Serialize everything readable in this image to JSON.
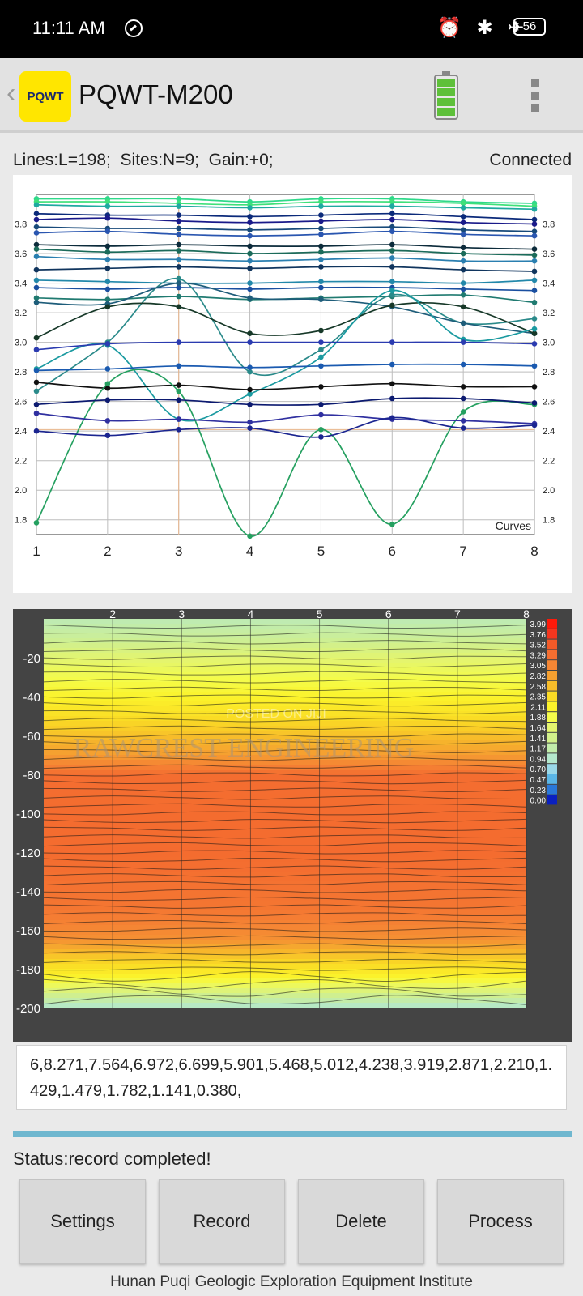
{
  "status_bar": {
    "time": "11:11 AM",
    "icons": "⏰ ✱ ✈",
    "battery": "56",
    "icon_names": [
      "do-not-disturb-icon",
      "alarm-icon",
      "bluetooth-icon",
      "airplane-icon",
      "battery-icon"
    ]
  },
  "app_bar": {
    "back_glyph": "‹",
    "logo_text": "PQWT",
    "title": "PQWT-M200"
  },
  "info": {
    "lines": "Lines:L=198;",
    "sites": "Sites:N=9;",
    "gain": "Gain:+0;",
    "connection": "Connected"
  },
  "chart_data": [
    {
      "type": "line",
      "legend_text": "Curves",
      "x": [
        1,
        2,
        3,
        4,
        5,
        6,
        7,
        8
      ],
      "ylim": [
        1.7,
        4.0
      ],
      "y_ticks": [
        "3.8",
        "3.6",
        "3.4",
        "3.2",
        "3.0",
        "2.8",
        "2.6",
        "2.4",
        "2.2",
        "2.0",
        "1.8"
      ],
      "x_ticks": [
        "1",
        "2",
        "3",
        "4",
        "5",
        "6",
        "7",
        "8"
      ],
      "grid": true,
      "series": [
        {
          "color": "#2fd98a",
          "values": [
            3.97,
            3.97,
            3.97,
            3.95,
            3.97,
            3.97,
            3.95,
            3.94
          ]
        },
        {
          "color": "#3fe07a",
          "values": [
            3.95,
            3.95,
            3.94,
            3.93,
            3.95,
            3.95,
            3.94,
            3.92
          ]
        },
        {
          "color": "#1fa9a0",
          "values": [
            3.93,
            3.92,
            3.92,
            3.91,
            3.92,
            3.92,
            3.91,
            3.9
          ]
        },
        {
          "color": "#0b2a7a",
          "values": [
            3.87,
            3.86,
            3.86,
            3.85,
            3.86,
            3.87,
            3.85,
            3.83
          ]
        },
        {
          "color": "#1a1a8a",
          "values": [
            3.83,
            3.84,
            3.82,
            3.81,
            3.82,
            3.83,
            3.81,
            3.8
          ]
        },
        {
          "color": "#184a7a",
          "values": [
            3.78,
            3.77,
            3.77,
            3.76,
            3.77,
            3.78,
            3.76,
            3.75
          ]
        },
        {
          "color": "#2a56b0",
          "values": [
            3.74,
            3.75,
            3.73,
            3.72,
            3.73,
            3.75,
            3.73,
            3.72
          ]
        },
        {
          "color": "#0c2b3b",
          "values": [
            3.66,
            3.65,
            3.66,
            3.65,
            3.65,
            3.66,
            3.64,
            3.63
          ]
        },
        {
          "color": "#1b6b5a",
          "values": [
            3.63,
            3.61,
            3.62,
            3.6,
            3.61,
            3.62,
            3.6,
            3.59
          ]
        },
        {
          "color": "#2a7fb0",
          "values": [
            3.58,
            3.56,
            3.56,
            3.55,
            3.56,
            3.57,
            3.55,
            3.55
          ]
        },
        {
          "color": "#10355e",
          "values": [
            3.49,
            3.5,
            3.51,
            3.5,
            3.51,
            3.51,
            3.49,
            3.48
          ]
        },
        {
          "color": "#2288aa",
          "values": [
            3.42,
            3.41,
            3.4,
            3.4,
            3.41,
            3.41,
            3.4,
            3.42
          ]
        },
        {
          "color": "#1a4fa0",
          "values": [
            3.37,
            3.36,
            3.37,
            3.36,
            3.37,
            3.37,
            3.36,
            3.35
          ]
        },
        {
          "color": "#1f7a70",
          "values": [
            3.3,
            3.29,
            3.31,
            3.29,
            3.3,
            3.31,
            3.32,
            3.27
          ]
        },
        {
          "color": "#2a8a8a",
          "values": [
            2.67,
            3.0,
            3.43,
            2.8,
            2.95,
            3.32,
            3.13,
            3.16
          ]
        },
        {
          "color": "#1e5d7a",
          "values": [
            3.27,
            3.26,
            3.4,
            3.3,
            3.29,
            3.24,
            3.13,
            3.06
          ]
        },
        {
          "color": "#163828",
          "values": [
            3.03,
            3.24,
            3.24,
            3.06,
            3.08,
            3.25,
            3.24,
            3.06
          ]
        },
        {
          "color": "#1a9aa0",
          "values": [
            2.82,
            2.98,
            2.48,
            2.65,
            2.9,
            3.35,
            3.02,
            3.09
          ]
        },
        {
          "color": "#2b3bb0",
          "values": [
            2.95,
            2.99,
            3.0,
            3.0,
            3.0,
            3.0,
            3.0,
            2.99
          ]
        },
        {
          "color": "#1a5ab0",
          "values": [
            2.81,
            2.82,
            2.84,
            2.83,
            2.84,
            2.85,
            2.85,
            2.84
          ]
        },
        {
          "color": "#111111",
          "values": [
            2.73,
            2.69,
            2.71,
            2.68,
            2.7,
            2.72,
            2.7,
            2.7
          ]
        },
        {
          "color": "#25a060",
          "values": [
            1.78,
            2.72,
            2.67,
            1.69,
            2.41,
            1.77,
            2.53,
            2.58
          ]
        },
        {
          "color": "#0c1a70",
          "values": [
            2.58,
            2.61,
            2.61,
            2.58,
            2.58,
            2.62,
            2.62,
            2.59
          ]
        },
        {
          "color": "#3030a0",
          "values": [
            2.52,
            2.47,
            2.48,
            2.46,
            2.51,
            2.48,
            2.47,
            2.45
          ]
        },
        {
          "color": "#1b2590",
          "values": [
            2.4,
            2.37,
            2.41,
            2.42,
            2.36,
            2.49,
            2.42,
            2.44
          ]
        }
      ]
    },
    {
      "type": "heatmap",
      "x_ticks": [
        "2",
        "3",
        "4",
        "5",
        "6",
        "7",
        "8"
      ],
      "y_ticks": [
        "-20",
        "-40",
        "-60",
        "-80",
        "-100",
        "-120",
        "-140",
        "-160",
        "-180",
        "-200"
      ],
      "ylim": [
        -200,
        0
      ],
      "xlim": [
        1,
        8
      ],
      "colorbar": [
        {
          "value": "3.99",
          "color": "#ff1a0a"
        },
        {
          "value": "3.76",
          "color": "#f4361e"
        },
        {
          "value": "3.52",
          "color": "#f25a28"
        },
        {
          "value": "3.29",
          "color": "#f46e30"
        },
        {
          "value": "3.05",
          "color": "#f58634"
        },
        {
          "value": "2.82",
          "color": "#f5a030"
        },
        {
          "value": "2.58",
          "color": "#f7bd2a"
        },
        {
          "value": "2.35",
          "color": "#fada25"
        },
        {
          "value": "2.11",
          "color": "#fbf22a"
        },
        {
          "value": "1.88",
          "color": "#f4fb4a"
        },
        {
          "value": "1.64",
          "color": "#e4f56e"
        },
        {
          "value": "1.41",
          "color": "#d2f08a"
        },
        {
          "value": "1.17",
          "color": "#c2ecaa"
        },
        {
          "value": "0.94",
          "color": "#b4e8cc"
        },
        {
          "value": "0.70",
          "color": "#9ad8e8"
        },
        {
          "value": "0.47",
          "color": "#5ab6e6"
        },
        {
          "value": "0.23",
          "color": "#2a78d8"
        },
        {
          "value": "0.00",
          "color": "#0a20c0"
        }
      ],
      "depth_profile": [
        {
          "depth": 0,
          "value": 1.1
        },
        {
          "depth": -10,
          "value": 1.3
        },
        {
          "depth": -20,
          "value": 1.62
        },
        {
          "depth": -30,
          "value": 1.85
        },
        {
          "depth": -40,
          "value": 2.1
        },
        {
          "depth": -50,
          "value": 2.3
        },
        {
          "depth": -60,
          "value": 2.55
        },
        {
          "depth": -70,
          "value": 2.85
        },
        {
          "depth": -80,
          "value": 3.3
        },
        {
          "depth": -120,
          "value": 3.32
        },
        {
          "depth": -150,
          "value": 3.2
        },
        {
          "depth": -165,
          "value": 2.95
        },
        {
          "depth": -175,
          "value": 2.45
        },
        {
          "depth": -185,
          "value": 2.05
        },
        {
          "depth": -192,
          "value": 1.5
        },
        {
          "depth": -200,
          "value": 0.9
        }
      ],
      "watermarks": [
        "POSTED ON JIJI",
        "RAWCREST ENGINEERING"
      ]
    }
  ],
  "readout": "6,8.271,7.564,6.972,6.699,5.901,5.468,5.012,4.238,3.919,2.871,2.210,1.429,1.479,1.782,1.141,0.380,",
  "progress": {
    "fraction": 1.0,
    "color": "#6fb7cf"
  },
  "status": "Status:record completed!",
  "buttons": {
    "settings": "Settings",
    "record": "Record",
    "delete": "Delete",
    "process": "Process"
  },
  "footer": "Hunan Puqi Geologic Exploration Equipment Institute"
}
